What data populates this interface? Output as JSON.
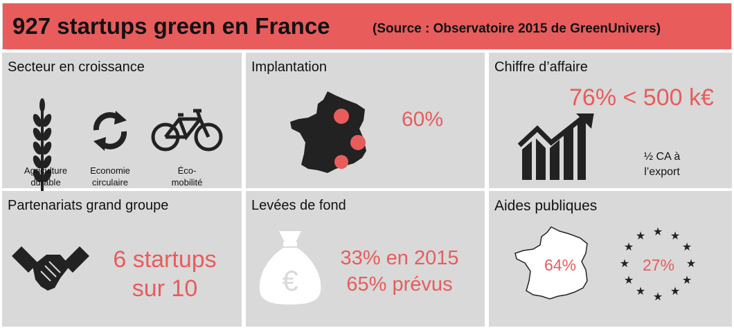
{
  "header": {
    "title": "927 startups green en France",
    "source": "(Source : Observatoire 2015 de GreenUnivers)"
  },
  "panels": {
    "secteur": {
      "title": "Secteur en croissance",
      "items": [
        {
          "icon": "wheat-icon",
          "label_l1": "Agriculture",
          "label_l2": "durable"
        },
        {
          "icon": "recycle-arrows-icon",
          "label_l1": "Economie",
          "label_l2": "circulaire"
        },
        {
          "icon": "bicycle-icon",
          "label_l1": "Éco-",
          "label_l2": "mobilité"
        }
      ]
    },
    "implantation": {
      "title": "Implantation",
      "value": "60%"
    },
    "chiffre": {
      "title": "Chiffre d’affaire",
      "value": "76% < 500 k€",
      "note_l1": "½ CA à",
      "note_l2": "l’export"
    },
    "partenariats": {
      "title": "Partenariats grand groupe",
      "value_l1": "6 startups",
      "value_l2": "sur 10"
    },
    "levees": {
      "title": "Levées de fond",
      "value_l1": "33% en 2015",
      "value_l2": "65% prévus",
      "bag_symbol": "€"
    },
    "aides": {
      "title": "Aides publiques",
      "france_value": "64%",
      "europe_value": "27%"
    }
  },
  "colors": {
    "accent": "#e85c5c",
    "panel_bg": "#d9d9d9",
    "icon": "#222222"
  }
}
